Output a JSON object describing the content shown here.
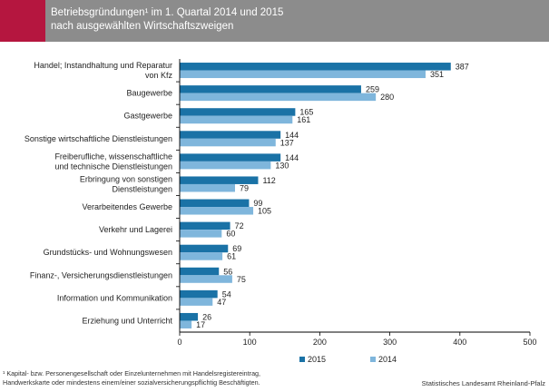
{
  "header": {
    "title_line1": "Betriebsgründungen¹ im 1. Quartal 2014 und 2015",
    "title_line2": "nach ausgewählten Wirtschaftszweigen"
  },
  "chart_data": {
    "type": "bar",
    "orientation": "horizontal",
    "categories": [
      [
        "Handel; Instandhaltung und Reparatur",
        "von Kfz"
      ],
      [
        "Baugewerbe"
      ],
      [
        "Gastgewerbe"
      ],
      [
        "Sonstige wirtschaftliche Dienstleistungen"
      ],
      [
        "Freiberufliche, wissenschaftliche",
        "und technische Dienstleistungen"
      ],
      [
        "Erbringung von sonstigen",
        "Dienstleistungen"
      ],
      [
        "Verarbeitendes Gewerbe"
      ],
      [
        "Verkehr und Lagerei"
      ],
      [
        "Grundstücks- und Wohnungswesen"
      ],
      [
        "Finanz-, Versicherungsdienstleistungen"
      ],
      [
        "Information und Kommunikation"
      ],
      [
        "Erziehung und Unterricht"
      ]
    ],
    "series": [
      {
        "name": "2015",
        "color": "#1a72a6",
        "values": [
          387,
          259,
          165,
          144,
          144,
          112,
          99,
          72,
          69,
          56,
          54,
          26
        ]
      },
      {
        "name": "2014",
        "color": "#7fb6dc",
        "values": [
          351,
          280,
          161,
          137,
          130,
          79,
          105,
          60,
          61,
          75,
          47,
          17
        ]
      }
    ],
    "xlim": [
      0,
      500
    ],
    "xticks": [
      0,
      100,
      200,
      300,
      400,
      500
    ],
    "legend_position": "bottom"
  },
  "footnote": {
    "line1": "¹ Kapital- bzw. Personengesellschaft oder Einzelunternehmen mit Handelsregistereintrag,",
    "line2": "Handwerkskarte oder mindestens einem/einer sozialversicherungspflichtig Beschäftigten."
  },
  "source": "Statistisches Landesamt Rheinland-Pfalz"
}
